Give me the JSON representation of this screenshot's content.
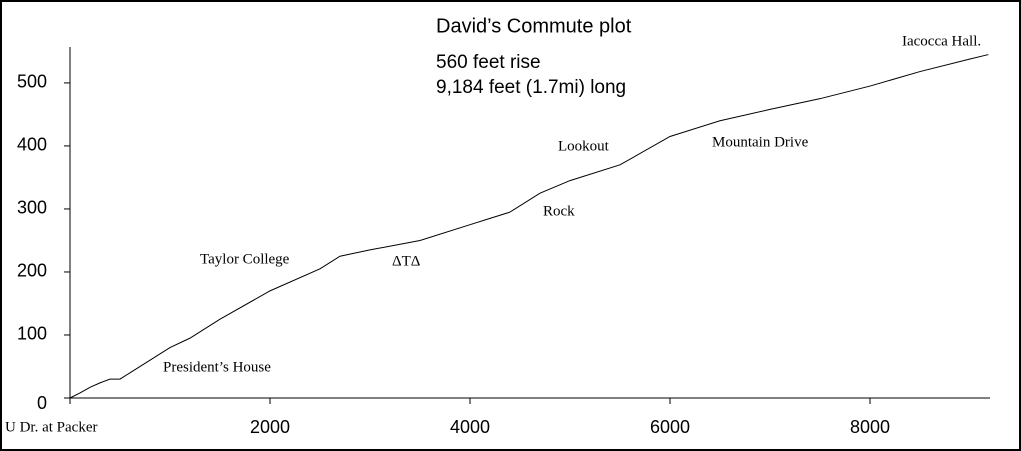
{
  "chart_data": {
    "type": "line",
    "title": "David’s Commute plot",
    "subtitle": [
      "560 feet rise",
      "9,184 feet (1.7mi) long"
    ],
    "x": [
      0,
      100,
      200,
      300,
      400,
      500,
      600,
      800,
      1000,
      1200,
      1500,
      2000,
      2500,
      2700,
      3000,
      3500,
      4000,
      4200,
      4400,
      4700,
      5000,
      5500,
      6000,
      6500,
      7000,
      7500,
      8000,
      8500,
      9000,
      9184
    ],
    "series": [
      {
        "color": "#000000",
        "values": [
          0,
          8,
          17,
          24,
          30,
          30,
          40,
          60,
          80,
          95,
          125,
          170,
          205,
          225,
          235,
          250,
          275,
          285,
          295,
          325,
          345,
          370,
          415,
          440,
          458,
          475,
          495,
          518,
          538,
          545
        ]
      }
    ],
    "xlim": [
      0,
      9200
    ],
    "ylim": [
      0,
      557
    ],
    "xticks": [
      {
        "value": 0,
        "label": "U Dr. at Packer"
      },
      2000,
      4000,
      6000,
      8000
    ],
    "yticks": [
      0,
      100,
      200,
      300,
      400,
      500
    ],
    "annotations": [
      "Iacocca Hall.",
      "Mountain Drive",
      "Lookout",
      "Rock",
      "ΔTΔ",
      "Taylor College",
      "President’s House"
    ]
  }
}
